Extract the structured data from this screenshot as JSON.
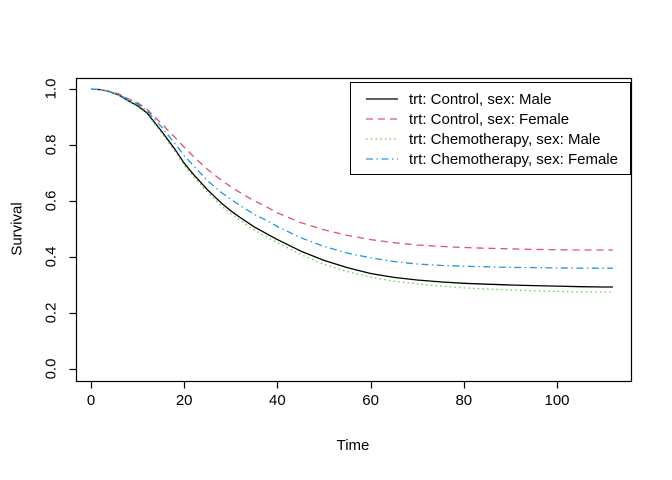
{
  "chart_data": {
    "type": "line",
    "title": "",
    "xlabel": "Time",
    "ylabel": "Survival",
    "xlim": [
      0,
      100
    ],
    "ylim": [
      0.0,
      1.0
    ],
    "x_ticks": [
      0,
      20,
      40,
      60,
      80,
      100
    ],
    "y_ticks": [
      "0.0",
      "0.2",
      "0.4",
      "0.6",
      "0.8",
      "1.0"
    ],
    "grid": false,
    "legend_position": "top-right",
    "x": [
      0,
      2,
      4,
      6,
      8,
      10,
      12,
      15,
      18,
      20,
      22,
      25,
      28,
      30,
      32,
      35,
      38,
      40,
      45,
      50,
      55,
      60,
      65,
      70,
      75,
      80,
      85,
      90,
      95,
      100,
      105,
      110,
      112
    ],
    "series": [
      {
        "name": "trt: Control, sex: Male",
        "color": "#000000",
        "linetype": "solid",
        "dash": "none",
        "values": [
          1.0,
          0.998,
          0.99,
          0.978,
          0.958,
          0.94,
          0.915,
          0.852,
          0.785,
          0.735,
          0.695,
          0.64,
          0.592,
          0.565,
          0.541,
          0.508,
          0.48,
          0.462,
          0.421,
          0.388,
          0.362,
          0.341,
          0.327,
          0.318,
          0.311,
          0.306,
          0.303,
          0.3,
          0.298,
          0.296,
          0.294,
          0.293,
          0.293
        ]
      },
      {
        "name": "trt: Control, sex: Female",
        "color": "#DF536B",
        "linetype": "dashed",
        "dash": "7,5",
        "values": [
          1.0,
          0.998,
          0.992,
          0.982,
          0.965,
          0.951,
          0.928,
          0.879,
          0.827,
          0.792,
          0.759,
          0.713,
          0.674,
          0.651,
          0.63,
          0.601,
          0.576,
          0.558,
          0.523,
          0.497,
          0.477,
          0.462,
          0.451,
          0.443,
          0.438,
          0.434,
          0.431,
          0.429,
          0.427,
          0.426,
          0.425,
          0.425,
          0.425
        ]
      },
      {
        "name": "trt: Chemotherapy, sex: Male",
        "color": "#61D04F",
        "linetype": "dotted",
        "dash": "1.5,3.2",
        "values": [
          1.0,
          0.998,
          0.99,
          0.977,
          0.956,
          0.937,
          0.911,
          0.846,
          0.778,
          0.727,
          0.687,
          0.631,
          0.582,
          0.555,
          0.531,
          0.497,
          0.469,
          0.451,
          0.409,
          0.374,
          0.348,
          0.328,
          0.314,
          0.304,
          0.296,
          0.29,
          0.285,
          0.282,
          0.279,
          0.277,
          0.276,
          0.275,
          0.275
        ]
      },
      {
        "name": "trt: Chemotherapy, sex: Female",
        "color": "#2297E6",
        "linetype": "dashdot",
        "dash": "7,3.5,1.5,3.5",
        "values": [
          1.0,
          0.998,
          0.991,
          0.98,
          0.962,
          0.947,
          0.922,
          0.867,
          0.805,
          0.762,
          0.726,
          0.673,
          0.63,
          0.606,
          0.584,
          0.553,
          0.528,
          0.509,
          0.469,
          0.438,
          0.414,
          0.397,
          0.384,
          0.375,
          0.37,
          0.367,
          0.365,
          0.363,
          0.362,
          0.361,
          0.36,
          0.36,
          0.36
        ]
      }
    ],
    "axis_color": "#000000",
    "background": "#ffffff"
  }
}
